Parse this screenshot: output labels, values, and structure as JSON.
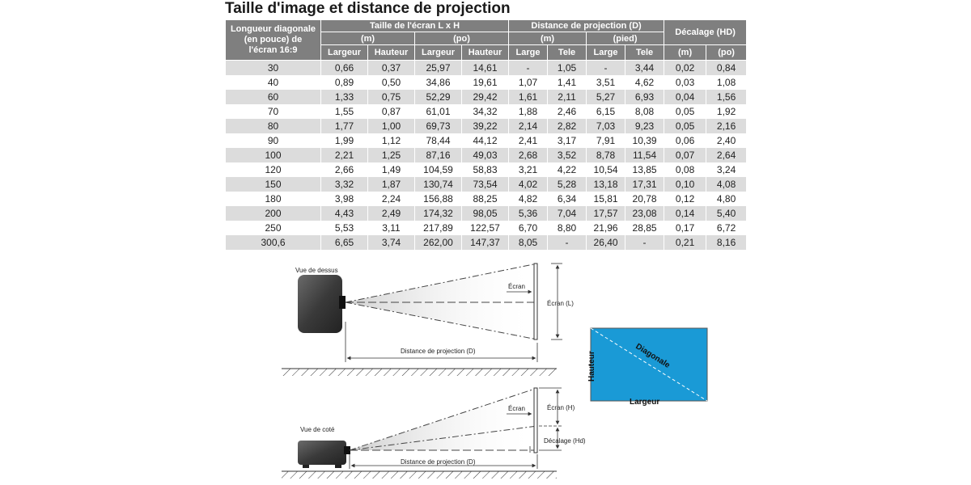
{
  "title": "Taille d'image et distance de projection",
  "table": {
    "col_diagonal": [
      "Longueur diagonale",
      "(en pouce) de",
      "l'écran 16:9"
    ],
    "group_size": "Taille de l'écran L x H",
    "group_distance": "Distance de projection (D)",
    "group_offset": "Décalage (HD)",
    "unit_m": "(m)",
    "unit_po": "(po)",
    "unit_pied": "(pied)",
    "sub_width": "Largeur",
    "sub_height": "Hauteur",
    "sub_wide": "Large",
    "sub_tele": "Tele",
    "rows": [
      [
        "30",
        "0,66",
        "0,37",
        "25,97",
        "14,61",
        "-",
        "1,05",
        "-",
        "3,44",
        "0,02",
        "0,84"
      ],
      [
        "40",
        "0,89",
        "0,50",
        "34,86",
        "19,61",
        "1,07",
        "1,41",
        "3,51",
        "4,62",
        "0,03",
        "1,08"
      ],
      [
        "60",
        "1,33",
        "0,75",
        "52,29",
        "29,42",
        "1,61",
        "2,11",
        "5,27",
        "6,93",
        "0,04",
        "1,56"
      ],
      [
        "70",
        "1,55",
        "0,87",
        "61,01",
        "34,32",
        "1,88",
        "2,46",
        "6,15",
        "8,08",
        "0,05",
        "1,92"
      ],
      [
        "80",
        "1,77",
        "1,00",
        "69,73",
        "39,22",
        "2,14",
        "2,82",
        "7,03",
        "9,23",
        "0,05",
        "2,16"
      ],
      [
        "90",
        "1,99",
        "1,12",
        "78,44",
        "44,12",
        "2,41",
        "3,17",
        "7,91",
        "10,39",
        "0,06",
        "2,40"
      ],
      [
        "100",
        "2,21",
        "1,25",
        "87,16",
        "49,03",
        "2,68",
        "3,52",
        "8,78",
        "11,54",
        "0,07",
        "2,64"
      ],
      [
        "120",
        "2,66",
        "1,49",
        "104,59",
        "58,83",
        "3,21",
        "4,22",
        "10,54",
        "13,85",
        "0,08",
        "3,24"
      ],
      [
        "150",
        "3,32",
        "1,87",
        "130,74",
        "73,54",
        "4,02",
        "5,28",
        "13,18",
        "17,31",
        "0,10",
        "4,08"
      ],
      [
        "180",
        "3,98",
        "2,24",
        "156,88",
        "88,25",
        "4,82",
        "6,34",
        "15,81",
        "20,78",
        "0,12",
        "4,80"
      ],
      [
        "200",
        "4,43",
        "2,49",
        "174,32",
        "98,05",
        "5,36",
        "7,04",
        "17,57",
        "23,08",
        "0,14",
        "5,40"
      ],
      [
        "250",
        "5,53",
        "3,11",
        "217,89",
        "122,57",
        "6,70",
        "8,80",
        "21,96",
        "28,85",
        "0,17",
        "6,72"
      ],
      [
        "300,6",
        "6,65",
        "3,74",
        "262,00",
        "147,37",
        "8,05",
        "-",
        "26,40",
        "-",
        "0,21",
        "8,16"
      ]
    ]
  },
  "diagram": {
    "top_view_label": "Vue de dessus",
    "side_view_label": "Vue de coté",
    "screen_label": "Écran",
    "screen_width_label": "Écran (L)",
    "screen_height_label": "Écran (H)",
    "offset_label": "Décalage (Hd)",
    "distance_label": "Distance de projection (D)",
    "screen_height_word": "Hauteur",
    "screen_width_word": "Largeur",
    "screen_diagonal_word": "Diagonale",
    "screen_fill_color": "#1a9ad6"
  }
}
